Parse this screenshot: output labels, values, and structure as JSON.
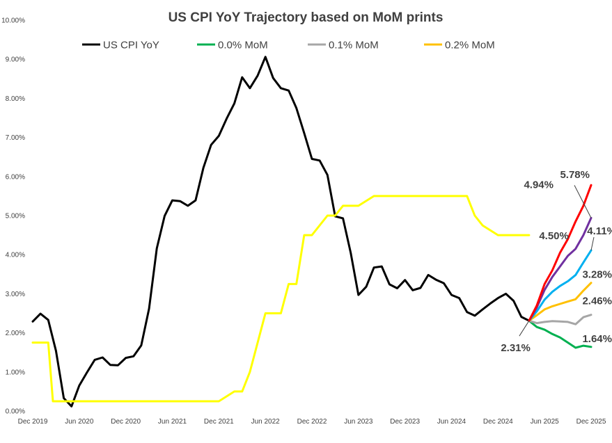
{
  "chart_data": {
    "type": "line",
    "title": "US CPI YoY Trajectory based on MoM prints",
    "xlabel": "",
    "ylabel": "",
    "ylim": [
      0,
      10
    ],
    "grid": false,
    "legend_position": "top",
    "y_ticks": [
      "0.00%",
      "1.00%",
      "2.00%",
      "3.00%",
      "4.00%",
      "5.00%",
      "6.00%",
      "7.00%",
      "8.00%",
      "9.00%",
      "10.00%"
    ],
    "x_ticks": [
      {
        "label": "Dec 2019",
        "t": 0
      },
      {
        "label": "Jun 2020",
        "t": 6
      },
      {
        "label": "Dec 2020",
        "t": 12
      },
      {
        "label": "Jun 2021",
        "t": 18
      },
      {
        "label": "Dec 2021",
        "t": 24
      },
      {
        "label": "Jun 2022",
        "t": 30
      },
      {
        "label": "Dec 2022",
        "t": 36
      },
      {
        "label": "Jun 2023",
        "t": 42
      },
      {
        "label": "Dec 2023",
        "t": 48
      },
      {
        "label": "Jun 2024",
        "t": 54
      },
      {
        "label": "Dec 2024",
        "t": 60
      },
      {
        "label": "Jun 2025",
        "t": 66
      },
      {
        "label": "Dec 2025",
        "t": 72
      }
    ],
    "series": [
      {
        "name": "US CPI YoY",
        "color": "#000000",
        "legend": true,
        "t": [
          0,
          1,
          2,
          3,
          4,
          5,
          6,
          7,
          8,
          9,
          10,
          11,
          12,
          13,
          14,
          15,
          16,
          17,
          18,
          19,
          20,
          21,
          22,
          23,
          24,
          25,
          26,
          27,
          28,
          29,
          30,
          31,
          32,
          33,
          34,
          35,
          36,
          37,
          38,
          39,
          40,
          41,
          42,
          43,
          44,
          45,
          46,
          47,
          48,
          49,
          50,
          51,
          52,
          53,
          54,
          55,
          56,
          57,
          58,
          59,
          60,
          61,
          62,
          63,
          64
        ],
        "values": [
          2.29,
          2.49,
          2.33,
          1.54,
          0.33,
          0.12,
          0.65,
          0.99,
          1.31,
          1.37,
          1.18,
          1.17,
          1.36,
          1.4,
          1.68,
          2.62,
          4.16,
          4.99,
          5.39,
          5.37,
          5.25,
          5.39,
          6.22,
          6.81,
          7.04,
          7.48,
          7.87,
          8.54,
          8.26,
          8.58,
          9.06,
          8.52,
          8.26,
          8.2,
          7.75,
          7.11,
          6.45,
          6.41,
          6.04,
          4.98,
          4.93,
          4.05,
          2.97,
          3.18,
          3.67,
          3.7,
          3.24,
          3.14,
          3.35,
          3.09,
          3.15,
          3.48,
          3.36,
          3.27,
          2.97,
          2.89,
          2.53,
          2.44,
          2.6,
          2.75,
          2.89,
          3.0,
          2.82,
          2.41,
          2.31
        ]
      },
      {
        "name": "",
        "color": "#ffff00",
        "legend": false,
        "t": [
          0,
          2,
          2.6,
          6,
          8,
          24,
          26,
          27,
          28,
          30,
          32,
          33,
          34,
          35,
          36,
          38,
          39,
          40,
          41,
          42,
          44,
          45,
          46,
          47,
          48,
          55,
          56,
          56.5,
          57,
          58,
          60,
          64
        ],
        "values": [
          1.75,
          1.75,
          0.25,
          0.25,
          0.25,
          0.25,
          0.5,
          0.5,
          1.0,
          2.5,
          2.5,
          3.25,
          3.25,
          4.5,
          4.5,
          5.0,
          5.0,
          5.25,
          5.25,
          5.25,
          5.5,
          5.5,
          5.5,
          5.5,
          5.5,
          5.5,
          5.5,
          5.25,
          5.0,
          4.75,
          4.5,
          4.5
        ]
      },
      {
        "name": "0.0% MoM",
        "color": "#00b050",
        "legend": true,
        "t": [
          64,
          65,
          66,
          67,
          68,
          69,
          70,
          71,
          72
        ],
        "values": [
          2.31,
          2.15,
          2.08,
          1.97,
          1.88,
          1.75,
          1.62,
          1.67,
          1.64
        ]
      },
      {
        "name": "0.1% MoM",
        "color": "#a6a6a6",
        "legend": true,
        "t": [
          64,
          65,
          66,
          67,
          68,
          69,
          70,
          71,
          72
        ],
        "values": [
          2.31,
          2.25,
          2.28,
          2.3,
          2.29,
          2.28,
          2.22,
          2.4,
          2.46
        ]
      },
      {
        "name": "0.2% MoM",
        "color": "#ffc000",
        "legend": true,
        "t": [
          64,
          65,
          66,
          67,
          68,
          69,
          70,
          71,
          72
        ],
        "values": [
          2.31,
          2.45,
          2.6,
          2.68,
          2.74,
          2.8,
          2.86,
          3.08,
          3.28
        ]
      },
      {
        "name": "",
        "color": "#00b0f0",
        "legend": false,
        "t": [
          64,
          65,
          66,
          67,
          68,
          69,
          70,
          71,
          72
        ],
        "values": [
          2.31,
          2.55,
          2.85,
          3.05,
          3.2,
          3.32,
          3.48,
          3.8,
          4.11
        ]
      },
      {
        "name": "",
        "color": "#7030a0",
        "legend": false,
        "t": [
          64,
          65,
          66,
          67,
          68,
          69,
          70,
          71,
          72
        ],
        "values": [
          2.31,
          2.65,
          3.1,
          3.43,
          3.7,
          3.97,
          4.15,
          4.5,
          4.94
        ]
      },
      {
        "name": "",
        "color": "#ff0000",
        "legend": false,
        "t": [
          64,
          65,
          66,
          67,
          68,
          69,
          70,
          71,
          72
        ],
        "values": [
          2.31,
          2.7,
          3.25,
          3.6,
          4.05,
          4.4,
          4.85,
          5.25,
          5.78
        ]
      }
    ],
    "annotations": [
      {
        "text": "5.78%",
        "t": 72,
        "value": 5.78,
        "anchor": "end",
        "dx": -2,
        "dy": -10,
        "leader": false
      },
      {
        "text": "4.94%",
        "t": 72,
        "value": 4.94,
        "anchor": "end",
        "dx": -54,
        "dy": -43,
        "leader": true,
        "ldx": -24,
        "ldy": -47
      },
      {
        "text": "4.11%",
        "t": 72,
        "value": 4.11,
        "anchor": "end",
        "dx": 36,
        "dy": -23,
        "leader": true,
        "ldx": 4,
        "ldy": -19
      },
      {
        "text": "4.50%",
        "t": 64,
        "value": 4.5,
        "anchor": "end",
        "dx": 57,
        "dy": 6,
        "leader": false
      },
      {
        "text": "3.28%",
        "t": 72,
        "value": 3.28,
        "anchor": "end",
        "dx": 30,
        "dy": -7,
        "leader": false
      },
      {
        "text": "2.46%",
        "t": 72,
        "value": 2.46,
        "anchor": "end",
        "dx": 30,
        "dy": -15,
        "leader": false
      },
      {
        "text": "1.64%",
        "t": 72,
        "value": 1.64,
        "anchor": "end",
        "dx": 30,
        "dy": -7,
        "leader": false
      },
      {
        "text": "2.31%",
        "t": 64,
        "value": 2.31,
        "anchor": "end",
        "dx": 2,
        "dy": 44,
        "leader": true,
        "ldx": -14,
        "ldy": 22
      }
    ]
  }
}
